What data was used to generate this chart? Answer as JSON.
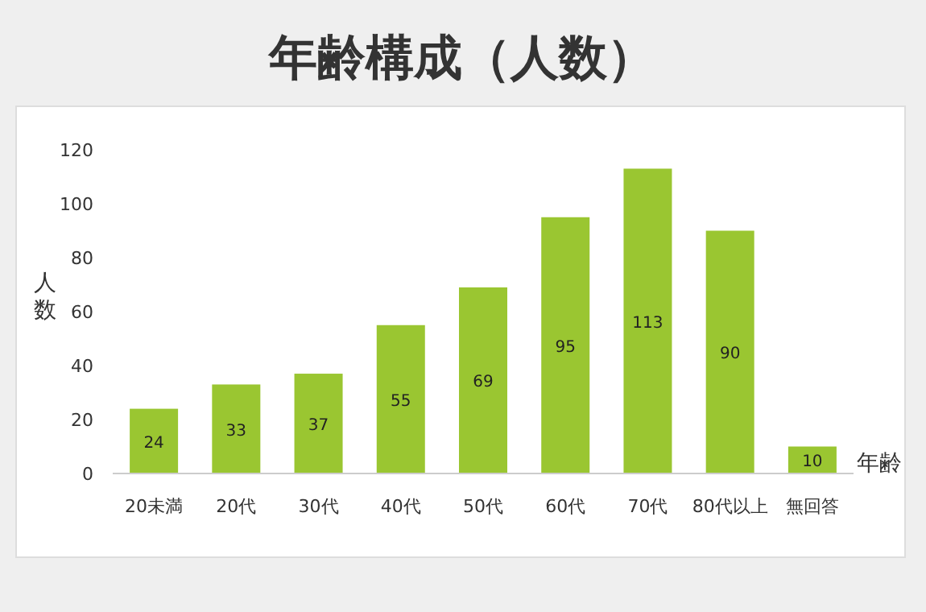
{
  "chart_data": {
    "type": "bar",
    "title": "年齢構成（人数）",
    "xlabel": "年齢",
    "ylabel": "人数",
    "categories": [
      "20未満",
      "20代",
      "30代",
      "40代",
      "50代",
      "60代",
      "70代",
      "80代以上",
      "無回答"
    ],
    "values": [
      24,
      33,
      37,
      55,
      69,
      95,
      113,
      90,
      10
    ],
    "color": "#9ac631",
    "ylim": [
      0,
      120
    ],
    "yticks": [
      0,
      20,
      40,
      60,
      80,
      100,
      120
    ],
    "data_labels": true,
    "grid": false
  }
}
